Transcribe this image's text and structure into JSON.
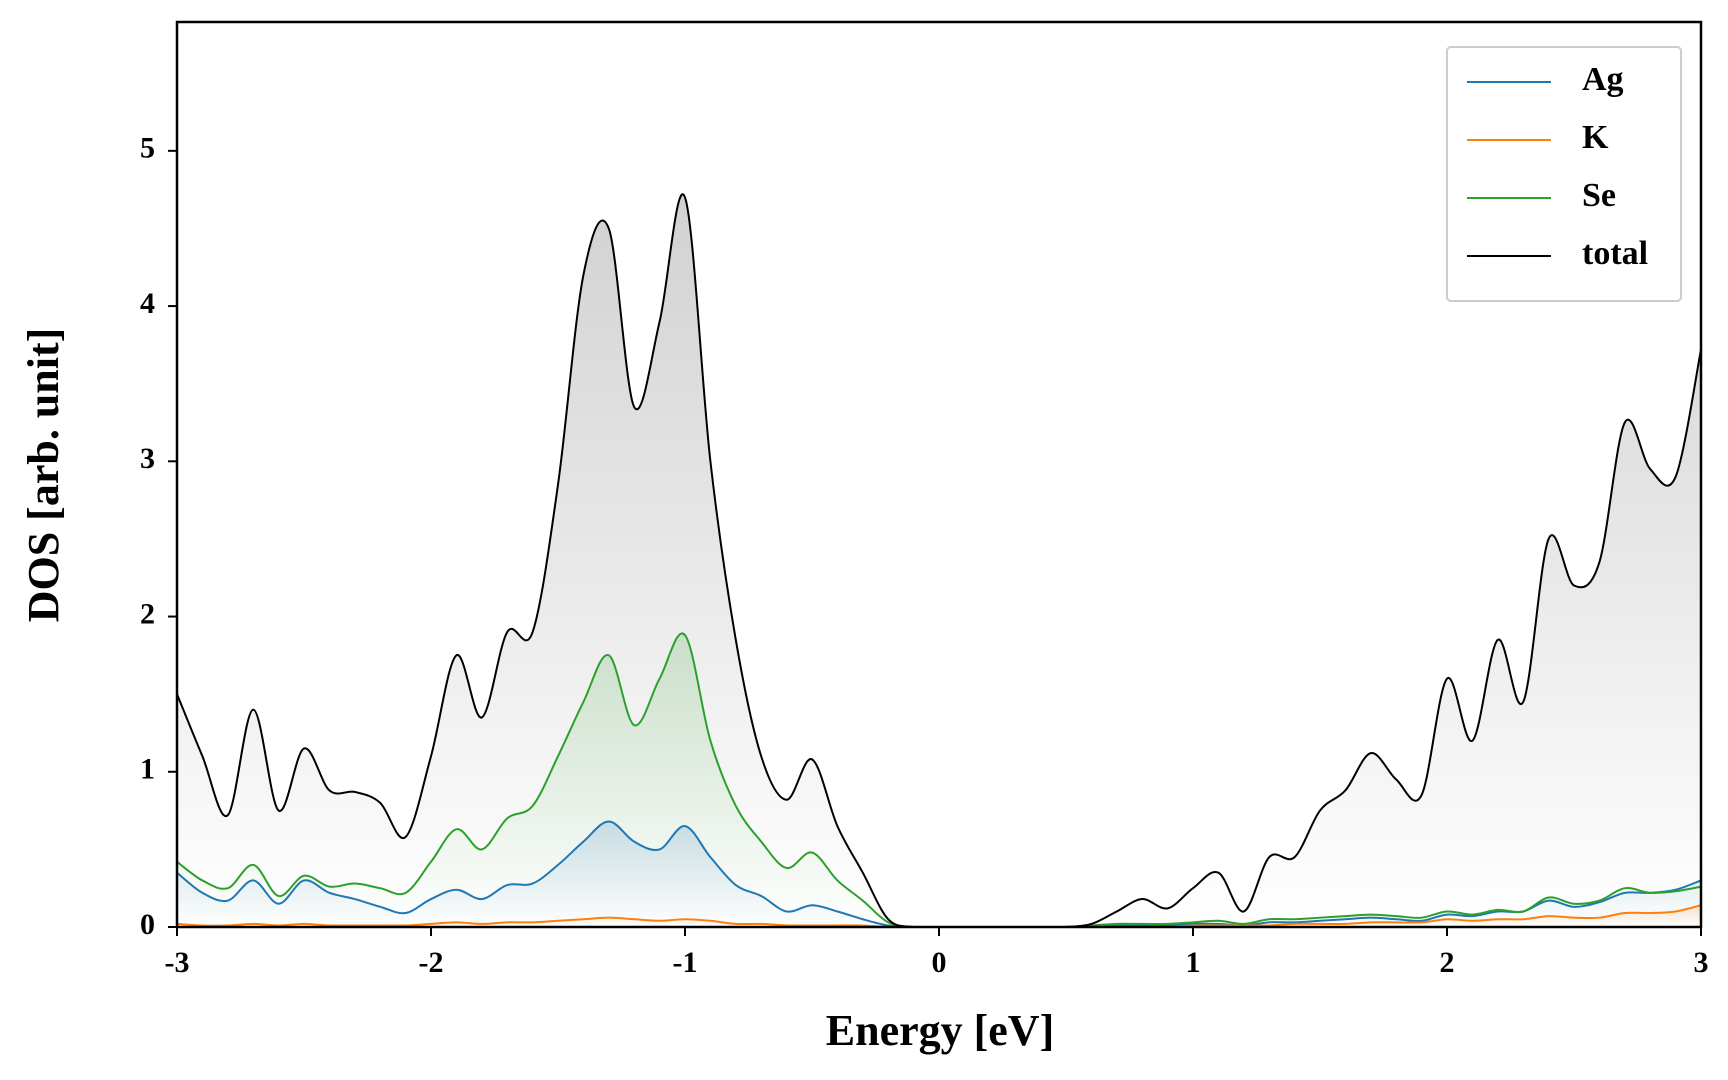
{
  "chart_data": {
    "type": "line",
    "xlabel": "Energy [eV]",
    "ylabel": "DOS [arb. unit]",
    "x": [
      -3.0,
      -2.9,
      -2.8,
      -2.7,
      -2.6,
      -2.5,
      -2.4,
      -2.3,
      -2.2,
      -2.1,
      -2.0,
      -1.9,
      -1.8,
      -1.7,
      -1.6,
      -1.5,
      -1.4,
      -1.3,
      -1.2,
      -1.1,
      -1.0,
      -0.9,
      -0.8,
      -0.7,
      -0.6,
      -0.5,
      -0.4,
      -0.3,
      -0.2,
      -0.1,
      0.0,
      0.1,
      0.2,
      0.3,
      0.4,
      0.5,
      0.6,
      0.7,
      0.8,
      0.9,
      1.0,
      1.1,
      1.2,
      1.3,
      1.4,
      1.5,
      1.6,
      1.7,
      1.8,
      1.9,
      2.0,
      2.1,
      2.2,
      2.3,
      2.4,
      2.5,
      2.6,
      2.7,
      2.8,
      2.9,
      3.0
    ],
    "series": [
      {
        "name": "Ag",
        "color": "#1f77b4",
        "values": [
          0.35,
          0.22,
          0.17,
          0.3,
          0.15,
          0.3,
          0.22,
          0.18,
          0.13,
          0.09,
          0.18,
          0.24,
          0.18,
          0.27,
          0.28,
          0.4,
          0.55,
          0.68,
          0.55,
          0.5,
          0.65,
          0.45,
          0.27,
          0.2,
          0.1,
          0.14,
          0.1,
          0.05,
          0.01,
          0,
          0,
          0,
          0,
          0,
          0,
          0,
          0.01,
          0.01,
          0.01,
          0.01,
          0.02,
          0.02,
          0.01,
          0.03,
          0.03,
          0.04,
          0.05,
          0.06,
          0.05,
          0.04,
          0.08,
          0.07,
          0.1,
          0.1,
          0.17,
          0.13,
          0.16,
          0.22,
          0.22,
          0.24,
          0.3
        ]
      },
      {
        "name": "K",
        "color": "#ff7f0e",
        "values": [
          0.02,
          0.01,
          0.01,
          0.02,
          0.01,
          0.02,
          0.01,
          0.01,
          0.01,
          0.01,
          0.02,
          0.03,
          0.02,
          0.03,
          0.03,
          0.04,
          0.05,
          0.06,
          0.05,
          0.04,
          0.05,
          0.04,
          0.02,
          0.02,
          0.01,
          0.01,
          0.01,
          0.01,
          0,
          0,
          0,
          0,
          0,
          0,
          0,
          0,
          0,
          0,
          0,
          0,
          0.01,
          0.01,
          0.01,
          0.01,
          0.02,
          0.02,
          0.02,
          0.03,
          0.03,
          0.03,
          0.05,
          0.04,
          0.05,
          0.05,
          0.07,
          0.06,
          0.06,
          0.09,
          0.09,
          0.1,
          0.14
        ]
      },
      {
        "name": "Se",
        "color": "#2ca02c",
        "values": [
          0.42,
          0.3,
          0.25,
          0.4,
          0.2,
          0.33,
          0.26,
          0.28,
          0.25,
          0.22,
          0.42,
          0.63,
          0.5,
          0.7,
          0.78,
          1.1,
          1.45,
          1.75,
          1.3,
          1.6,
          1.88,
          1.2,
          0.78,
          0.55,
          0.38,
          0.48,
          0.3,
          0.17,
          0.03,
          0,
          0,
          0,
          0,
          0,
          0,
          0,
          0.01,
          0.02,
          0.02,
          0.02,
          0.03,
          0.04,
          0.02,
          0.05,
          0.05,
          0.06,
          0.07,
          0.08,
          0.07,
          0.06,
          0.1,
          0.08,
          0.11,
          0.1,
          0.19,
          0.15,
          0.17,
          0.25,
          0.22,
          0.23,
          0.26
        ]
      },
      {
        "name": "total",
        "color": "#000000",
        "values": [
          1.5,
          1.1,
          0.72,
          1.4,
          0.75,
          1.15,
          0.88,
          0.87,
          0.8,
          0.58,
          1.1,
          1.75,
          1.35,
          1.9,
          1.9,
          2.85,
          4.2,
          4.5,
          3.35,
          3.9,
          4.7,
          3.0,
          1.85,
          1.1,
          0.82,
          1.08,
          0.65,
          0.35,
          0.05,
          0,
          0,
          0,
          0,
          0,
          0,
          0,
          0.02,
          0.1,
          0.18,
          0.12,
          0.25,
          0.35,
          0.1,
          0.45,
          0.45,
          0.75,
          0.88,
          1.12,
          0.95,
          0.85,
          1.6,
          1.2,
          1.85,
          1.45,
          2.5,
          2.2,
          2.35,
          3.25,
          2.95,
          2.9,
          3.72
        ]
      }
    ],
    "xlim": [
      -3,
      3
    ],
    "xticks": [
      -3,
      -2,
      -1,
      0,
      1,
      2,
      3
    ],
    "ylim": [
      0,
      5.83
    ],
    "yticks": [
      0,
      1,
      2,
      3,
      4,
      5
    ],
    "legend": "upper right"
  }
}
